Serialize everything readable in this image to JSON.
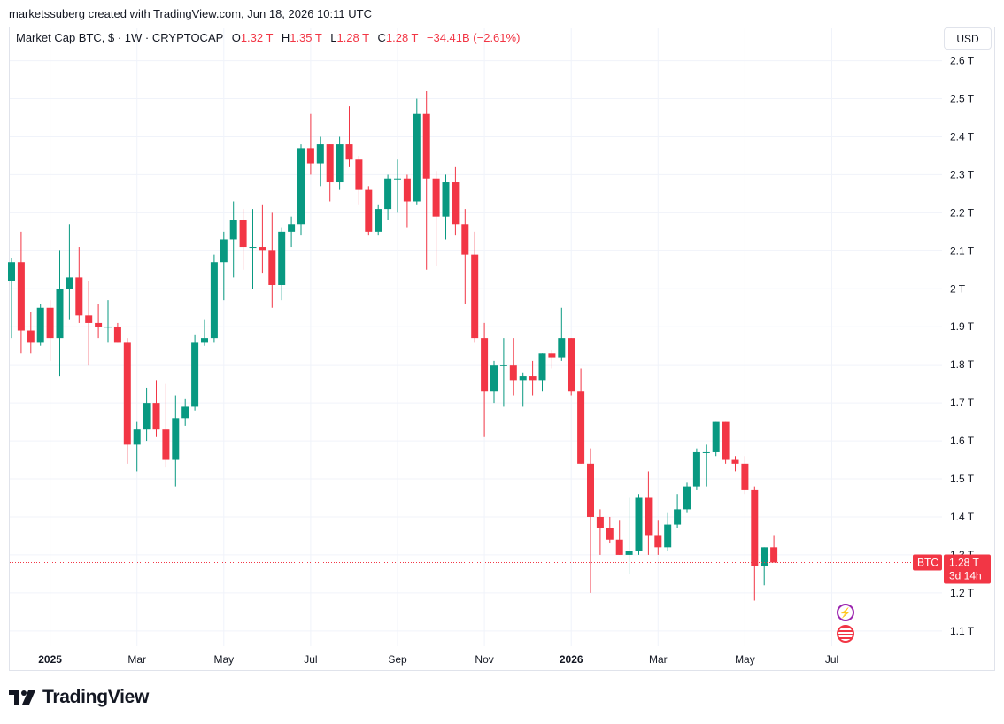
{
  "header": {
    "credit": "marketssuberg created with TradingView.com, Jun 18, 2026 10:11 UTC"
  },
  "legend": {
    "symbol": "Market Cap BTC, $ · 1W · CRYPTOCAP",
    "open_label": "O",
    "open": "1.32 T",
    "high_label": "H",
    "high": "1.35 T",
    "low_label": "L",
    "low": "1.28 T",
    "close_label": "C",
    "close": "1.28 T",
    "change": "−34.41B (−2.61%)"
  },
  "currency_button": "USD",
  "price_tag": {
    "name": "BTC",
    "value": "1.28 T",
    "countdown": "3d 14h"
  },
  "brand": "TradingView",
  "colors": {
    "up": "#089981",
    "down": "#f23645",
    "grid": "#f0f3fa",
    "text": "#131722"
  },
  "chart_data": {
    "type": "candlestick",
    "series_name": "BTC",
    "interval": "1W",
    "unit": "T",
    "ylim": [
      1.06,
      2.62
    ],
    "y_ticks": [
      {
        "value": 1.1,
        "label": "1.1 T"
      },
      {
        "value": 1.2,
        "label": "1.2 T"
      },
      {
        "value": 1.3,
        "label": "1.3 T"
      },
      {
        "value": 1.4,
        "label": "1.4 T"
      },
      {
        "value": 1.5,
        "label": "1.5 T"
      },
      {
        "value": 1.6,
        "label": "1.6 T"
      },
      {
        "value": 1.7,
        "label": "1.7 T"
      },
      {
        "value": 1.8,
        "label": "1.8 T"
      },
      {
        "value": 1.9,
        "label": "1.9 T"
      },
      {
        "value": 2.0,
        "label": "2 T"
      },
      {
        "value": 2.1,
        "label": "2.1 T"
      },
      {
        "value": 2.2,
        "label": "2.2 T"
      },
      {
        "value": 2.3,
        "label": "2.3 T"
      },
      {
        "value": 2.4,
        "label": "2.4 T"
      },
      {
        "value": 2.5,
        "label": "2.5 T"
      },
      {
        "value": 2.6,
        "label": "2.6 T"
      }
    ],
    "x_ticks": [
      {
        "index": 4,
        "label": "2025",
        "bold": true
      },
      {
        "index": 13,
        "label": "Mar",
        "bold": false
      },
      {
        "index": 22,
        "label": "May",
        "bold": false
      },
      {
        "index": 31,
        "label": "Jul",
        "bold": false
      },
      {
        "index": 40,
        "label": "Sep",
        "bold": false
      },
      {
        "index": 49,
        "label": "Nov",
        "bold": false
      },
      {
        "index": 58,
        "label": "2026",
        "bold": true
      },
      {
        "index": 67,
        "label": "Mar",
        "bold": false
      },
      {
        "index": 76,
        "label": "May",
        "bold": false
      },
      {
        "index": 85,
        "label": "Jul",
        "bold": false
      }
    ],
    "current_price": 1.28,
    "candles": [
      [
        2.02,
        2.08,
        1.87,
        2.07
      ],
      [
        2.07,
        2.15,
        1.83,
        1.89
      ],
      [
        1.89,
        1.94,
        1.83,
        1.86
      ],
      [
        1.86,
        1.96,
        1.85,
        1.95
      ],
      [
        1.95,
        1.97,
        1.81,
        1.87
      ],
      [
        1.87,
        2.1,
        1.77,
        2.0
      ],
      [
        2.0,
        2.17,
        1.92,
        2.03
      ],
      [
        2.03,
        2.11,
        1.91,
        1.93
      ],
      [
        1.93,
        2.02,
        1.8,
        1.91
      ],
      [
        1.91,
        1.96,
        1.87,
        1.9
      ],
      [
        1.9,
        1.97,
        1.86,
        1.9
      ],
      [
        1.9,
        1.91,
        1.86,
        1.86
      ],
      [
        1.86,
        1.87,
        1.54,
        1.59
      ],
      [
        1.59,
        1.65,
        1.52,
        1.63
      ],
      [
        1.63,
        1.74,
        1.6,
        1.7
      ],
      [
        1.7,
        1.76,
        1.61,
        1.63
      ],
      [
        1.63,
        1.75,
        1.53,
        1.55
      ],
      [
        1.55,
        1.72,
        1.48,
        1.66
      ],
      [
        1.66,
        1.71,
        1.64,
        1.69
      ],
      [
        1.69,
        1.88,
        1.68,
        1.86
      ],
      [
        1.86,
        1.92,
        1.85,
        1.87
      ],
      [
        1.87,
        2.09,
        1.86,
        2.07
      ],
      [
        2.07,
        2.15,
        1.97,
        2.13
      ],
      [
        2.13,
        2.23,
        2.03,
        2.18
      ],
      [
        2.18,
        2.21,
        2.05,
        2.11
      ],
      [
        2.11,
        2.21,
        2.0,
        2.11
      ],
      [
        2.11,
        2.22,
        2.04,
        2.1
      ],
      [
        2.1,
        2.2,
        1.95,
        2.01
      ],
      [
        2.01,
        2.16,
        1.97,
        2.15
      ],
      [
        2.15,
        2.19,
        2.11,
        2.17
      ],
      [
        2.17,
        2.38,
        2.14,
        2.37
      ],
      [
        2.37,
        2.46,
        2.3,
        2.33
      ],
      [
        2.33,
        2.4,
        2.27,
        2.38
      ],
      [
        2.38,
        2.38,
        2.23,
        2.28
      ],
      [
        2.28,
        2.4,
        2.26,
        2.38
      ],
      [
        2.38,
        2.48,
        2.32,
        2.34
      ],
      [
        2.34,
        2.35,
        2.22,
        2.26
      ],
      [
        2.26,
        2.27,
        2.14,
        2.15
      ],
      [
        2.15,
        2.22,
        2.14,
        2.21
      ],
      [
        2.21,
        2.3,
        2.18,
        2.29
      ],
      [
        2.29,
        2.34,
        2.2,
        2.29
      ],
      [
        2.29,
        2.3,
        2.16,
        2.23
      ],
      [
        2.23,
        2.5,
        2.22,
        2.46
      ],
      [
        2.46,
        2.52,
        2.05,
        2.29
      ],
      [
        2.29,
        2.31,
        2.06,
        2.19
      ],
      [
        2.19,
        2.3,
        2.13,
        2.28
      ],
      [
        2.28,
        2.32,
        2.14,
        2.17
      ],
      [
        2.17,
        2.21,
        1.96,
        2.09
      ],
      [
        2.09,
        2.15,
        1.86,
        1.87
      ],
      [
        1.87,
        1.91,
        1.61,
        1.73
      ],
      [
        1.73,
        1.81,
        1.7,
        1.8
      ],
      [
        1.8,
        1.87,
        1.69,
        1.8
      ],
      [
        1.8,
        1.87,
        1.72,
        1.76
      ],
      [
        1.76,
        1.78,
        1.69,
        1.77
      ],
      [
        1.77,
        1.81,
        1.72,
        1.76
      ],
      [
        1.76,
        1.83,
        1.73,
        1.83
      ],
      [
        1.83,
        1.84,
        1.79,
        1.82
      ],
      [
        1.82,
        1.95,
        1.81,
        1.87
      ],
      [
        1.87,
        1.87,
        1.72,
        1.73
      ],
      [
        1.73,
        1.79,
        1.54,
        1.54
      ],
      [
        1.54,
        1.58,
        1.2,
        1.4
      ],
      [
        1.4,
        1.42,
        1.3,
        1.37
      ],
      [
        1.37,
        1.4,
        1.33,
        1.34
      ],
      [
        1.34,
        1.39,
        1.3,
        1.3
      ],
      [
        1.3,
        1.45,
        1.25,
        1.31
      ],
      [
        1.31,
        1.46,
        1.3,
        1.45
      ],
      [
        1.45,
        1.52,
        1.3,
        1.35
      ],
      [
        1.35,
        1.39,
        1.3,
        1.32
      ],
      [
        1.32,
        1.41,
        1.31,
        1.38
      ],
      [
        1.38,
        1.46,
        1.37,
        1.42
      ],
      [
        1.42,
        1.49,
        1.41,
        1.48
      ],
      [
        1.48,
        1.58,
        1.47,
        1.57
      ],
      [
        1.57,
        1.59,
        1.48,
        1.57
      ],
      [
        1.57,
        1.65,
        1.56,
        1.65
      ],
      [
        1.65,
        1.65,
        1.54,
        1.55
      ],
      [
        1.55,
        1.56,
        1.52,
        1.54
      ],
      [
        1.54,
        1.56,
        1.46,
        1.47
      ],
      [
        1.47,
        1.48,
        1.18,
        1.27
      ],
      [
        1.27,
        1.32,
        1.22,
        1.32
      ],
      [
        1.32,
        1.35,
        1.28,
        1.28
      ]
    ]
  }
}
